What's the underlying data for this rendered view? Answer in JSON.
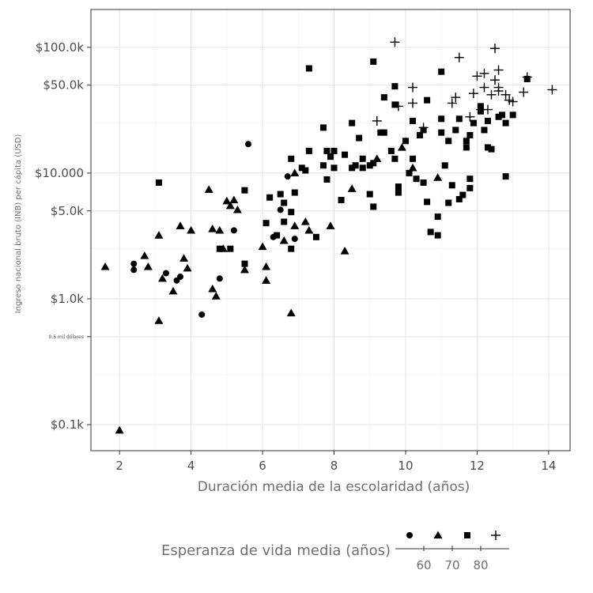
{
  "chart_data": {
    "type": "scatter",
    "xlabel": "Duración media de la escolaridad (años)",
    "ylabel": "Ingreso nacional bruto (INB) per cápita (USD)",
    "xlim": [
      1.2,
      14.6
    ],
    "x_ticks": [
      2,
      4,
      6,
      8,
      10,
      12,
      14
    ],
    "x_tick_labels": [
      "2",
      "4",
      "6",
      "8",
      "10",
      "12",
      "14"
    ],
    "y_scale": "log",
    "ylim": [
      62,
      200000
    ],
    "y_ticks": [
      {
        "value": 100,
        "label": "$0.1k"
      },
      {
        "value": 500,
        "label": "0,5 mil dólares"
      },
      {
        "value": 1000,
        "label": "$1.0k"
      },
      {
        "value": 5000,
        "label": "$5.0k"
      },
      {
        "value": 10000,
        "label": "$10.000"
      },
      {
        "value": 50000,
        "label": "$50.0k"
      },
      {
        "value": 100000,
        "label": "$100.0k"
      }
    ],
    "grid": true,
    "legend": {
      "title": "Esperanza de vida media (años)",
      "position": "bottom",
      "ticks": [
        "60",
        "70",
        "80"
      ],
      "shapes": [
        "circle",
        "triangle",
        "square",
        "plus"
      ]
    },
    "series": [
      {
        "shape": "circle",
        "points": [
          [
            2.4,
            1700
          ],
          [
            2.4,
            1900
          ],
          [
            3.3,
            1600
          ],
          [
            3.6,
            1400
          ],
          [
            3.7,
            1500
          ],
          [
            4.3,
            750
          ],
          [
            4.8,
            1450
          ],
          [
            5.2,
            3500
          ],
          [
            5.6,
            17000
          ],
          [
            6.3,
            3100
          ],
          [
            6.5,
            5100
          ],
          [
            6.7,
            9400
          ],
          [
            6.9,
            3000
          ]
        ]
      },
      {
        "shape": "triangle",
        "points": [
          [
            1.6,
            1800
          ],
          [
            2.0,
            90
          ],
          [
            2.7,
            2200
          ],
          [
            2.8,
            1800
          ],
          [
            3.1,
            3200
          ],
          [
            3.1,
            670
          ],
          [
            3.2,
            1450
          ],
          [
            3.5,
            1150
          ],
          [
            3.7,
            3800
          ],
          [
            3.8,
            2100
          ],
          [
            3.9,
            1750
          ],
          [
            4.0,
            3500
          ],
          [
            4.5,
            7400
          ],
          [
            4.6,
            3600
          ],
          [
            4.6,
            1200
          ],
          [
            4.7,
            1050
          ],
          [
            4.8,
            3500
          ],
          [
            4.9,
            2500
          ],
          [
            5.0,
            6000
          ],
          [
            5.1,
            5500
          ],
          [
            5.2,
            6100
          ],
          [
            5.3,
            5100
          ],
          [
            5.5,
            1700
          ],
          [
            6.0,
            2600
          ],
          [
            6.1,
            1800
          ],
          [
            6.1,
            1400
          ],
          [
            6.6,
            2900
          ],
          [
            6.8,
            770
          ],
          [
            6.9,
            3800
          ],
          [
            6.9,
            10000
          ],
          [
            7.2,
            4100
          ],
          [
            7.3,
            3500
          ],
          [
            7.9,
            3800
          ],
          [
            8.3,
            2400
          ],
          [
            8.5,
            7500
          ],
          [
            9.2,
            13000
          ],
          [
            9.9,
            16000
          ],
          [
            10.2,
            11000
          ],
          [
            10.9,
            9200
          ]
        ]
      },
      {
        "shape": "square",
        "points": [
          [
            3.1,
            8400
          ],
          [
            4.8,
            2500
          ],
          [
            5.1,
            2500
          ],
          [
            5.5,
            1900
          ],
          [
            5.5,
            7300
          ],
          [
            6.1,
            4000
          ],
          [
            6.2,
            6400
          ],
          [
            6.4,
            3200
          ],
          [
            6.5,
            6800
          ],
          [
            6.6,
            4100
          ],
          [
            6.6,
            5800
          ],
          [
            6.8,
            13000
          ],
          [
            6.8,
            4900
          ],
          [
            6.8,
            2500
          ],
          [
            6.9,
            7000
          ],
          [
            7.1,
            11000
          ],
          [
            7.2,
            10500
          ],
          [
            7.3,
            68000
          ],
          [
            7.3,
            15000
          ],
          [
            7.5,
            3100
          ],
          [
            7.7,
            11500
          ],
          [
            7.7,
            23000
          ],
          [
            7.8,
            8900
          ],
          [
            7.8,
            15000
          ],
          [
            7.9,
            13500
          ],
          [
            8.0,
            11000
          ],
          [
            8.0,
            15000
          ],
          [
            8.2,
            6100
          ],
          [
            8.3,
            14000
          ],
          [
            8.5,
            25000
          ],
          [
            8.5,
            11000
          ],
          [
            8.6,
            11500
          ],
          [
            8.7,
            19000
          ],
          [
            8.8,
            13000
          ],
          [
            8.8,
            11000
          ],
          [
            9.0,
            11500
          ],
          [
            9.0,
            6800
          ],
          [
            9.1,
            5400
          ],
          [
            9.1,
            12000
          ],
          [
            9.1,
            77000
          ],
          [
            9.3,
            21000
          ],
          [
            9.4,
            40000
          ],
          [
            9.4,
            21000
          ],
          [
            9.6,
            15000
          ],
          [
            9.7,
            49000
          ],
          [
            9.7,
            35000
          ],
          [
            9.7,
            13000
          ],
          [
            9.8,
            7000
          ],
          [
            9.8,
            7800
          ],
          [
            10.0,
            18000
          ],
          [
            10.1,
            10000
          ],
          [
            10.2,
            26000
          ],
          [
            10.2,
            13000
          ],
          [
            10.3,
            9000
          ],
          [
            10.4,
            20000
          ],
          [
            10.5,
            22000
          ],
          [
            10.5,
            8400
          ],
          [
            10.6,
            5900
          ],
          [
            10.6,
            38000
          ],
          [
            10.7,
            3400
          ],
          [
            10.9,
            3200
          ],
          [
            10.9,
            4500
          ],
          [
            11.0,
            64000
          ],
          [
            11.0,
            27000
          ],
          [
            11.0,
            21000
          ],
          [
            11.1,
            11500
          ],
          [
            11.2,
            5800
          ],
          [
            11.2,
            18000
          ],
          [
            11.3,
            8000
          ],
          [
            11.4,
            22000
          ],
          [
            11.5,
            6200
          ],
          [
            11.5,
            27000
          ],
          [
            11.6,
            6700
          ],
          [
            11.7,
            16000
          ],
          [
            11.7,
            18000
          ],
          [
            11.8,
            9000
          ],
          [
            11.8,
            7600
          ],
          [
            11.8,
            20000
          ],
          [
            11.9,
            25000
          ],
          [
            12.1,
            34000
          ],
          [
            12.1,
            31000
          ],
          [
            12.2,
            22000
          ],
          [
            12.3,
            26000
          ],
          [
            12.3,
            16000
          ],
          [
            12.4,
            15500
          ],
          [
            12.6,
            28000
          ],
          [
            12.7,
            29000
          ],
          [
            12.8,
            9400
          ],
          [
            12.8,
            25000
          ],
          [
            13.0,
            29000
          ],
          [
            13.4,
            56000
          ]
        ]
      },
      {
        "shape": "plus",
        "points": [
          [
            9.2,
            26000
          ],
          [
            9.7,
            110000
          ],
          [
            9.8,
            34000
          ],
          [
            10.2,
            48000
          ],
          [
            10.2,
            36000
          ],
          [
            10.5,
            23000
          ],
          [
            11.3,
            36000
          ],
          [
            11.4,
            40000
          ],
          [
            11.5,
            83000
          ],
          [
            11.8,
            28000
          ],
          [
            11.9,
            43000
          ],
          [
            12.0,
            59000
          ],
          [
            12.1,
            32000
          ],
          [
            12.2,
            48000
          ],
          [
            12.2,
            62000
          ],
          [
            12.3,
            32000
          ],
          [
            12.4,
            42000
          ],
          [
            12.5,
            98000
          ],
          [
            12.5,
            55000
          ],
          [
            12.6,
            45000
          ],
          [
            12.6,
            66000
          ],
          [
            12.6,
            48000
          ],
          [
            12.8,
            42000
          ],
          [
            12.9,
            38000
          ],
          [
            13.0,
            37000
          ],
          [
            13.3,
            44000
          ],
          [
            13.4,
            58000
          ],
          [
            14.1,
            46000
          ]
        ]
      }
    ]
  }
}
